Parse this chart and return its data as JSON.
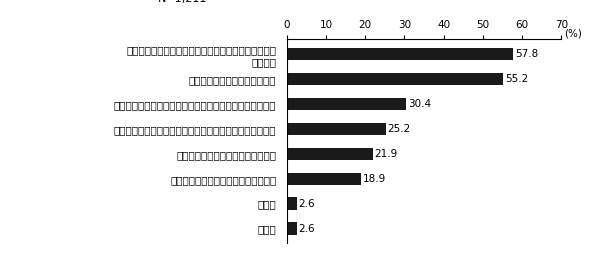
{
  "categories": [
    "無回答",
    "その他",
    "女性の能力を高める機会が少ないから",
    "家族の理解や協力が得られないから",
    "女性ということで正当な評価を得られないことが多いから",
    "女性自身が管理職や地域の役職につくことに消極的だから",
    "男性優位の組織運営であるから",
    "性別により男女の役割を固定する考え方や社会通念が\nあるから"
  ],
  "values": [
    2.6,
    2.6,
    18.9,
    21.9,
    25.2,
    30.4,
    55.2,
    57.8
  ],
  "bar_color": "#1a1a1a",
  "percent_label": "(%)",
  "xlim": [
    0,
    70
  ],
  "xticks": [
    0,
    10,
    20,
    30,
    40,
    50,
    60,
    70
  ],
  "value_labels": [
    "2.6",
    "2.6",
    "18.9",
    "21.9",
    "25.2",
    "30.4",
    "55.2",
    "57.8"
  ],
  "label_fontsize": 7.5,
  "value_fontsize": 7.5,
  "n_fontsize": 8.0,
  "bar_height": 0.5
}
